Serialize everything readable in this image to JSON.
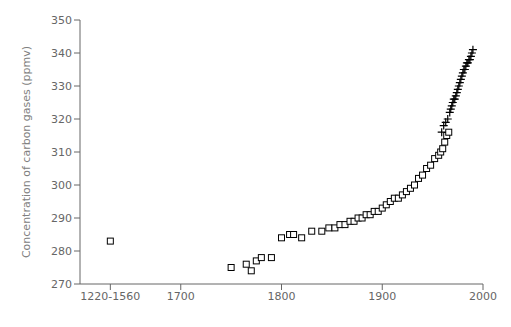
{
  "chart_data": {
    "type": "scatter",
    "ylabel": "Concentration of carbon gases (ppmv)",
    "ylim": [
      270,
      350
    ],
    "yticks": [
      270,
      280,
      290,
      300,
      310,
      320,
      330,
      340,
      350
    ],
    "xlim": [
      1220,
      2000
    ],
    "xticks": [
      {
        "value": 1390,
        "label": "1220-1560"
      },
      1700,
      1800,
      1900,
      2000
    ],
    "grid": false,
    "series": [
      {
        "marker": "square",
        "color": "#000000",
        "x": [
          1390,
          1750,
          1765,
          1770,
          1775,
          1780,
          1790,
          1800,
          1808,
          1812,
          1820,
          1830,
          1840,
          1847,
          1853,
          1858,
          1863,
          1868,
          1872,
          1876,
          1880,
          1884,
          1888,
          1892,
          1896,
          1900,
          1904,
          1908,
          1912,
          1916,
          1920,
          1924,
          1928,
          1932,
          1936,
          1940,
          1944,
          1948,
          1952,
          1956,
          1958,
          1960,
          1962,
          1964,
          1966
        ],
        "values": [
          283,
          275,
          276,
          274,
          277,
          278,
          278,
          284,
          285,
          285,
          284,
          286,
          286,
          287,
          287,
          288,
          288,
          289,
          289,
          290,
          290,
          291,
          291,
          292,
          292,
          293,
          294,
          295,
          296,
          296,
          297,
          298,
          299,
          300,
          302,
          303,
          305,
          306,
          308,
          309,
          310,
          311,
          313,
          315,
          316
        ]
      },
      {
        "marker": "plus",
        "color": "#000000",
        "x": [
          1959,
          1961,
          1963,
          1965,
          1967,
          1968,
          1969,
          1970,
          1971,
          1972,
          1973,
          1974,
          1975,
          1976,
          1977,
          1978,
          1979,
          1980,
          1981,
          1982,
          1983,
          1984,
          1985,
          1986,
          1987,
          1988,
          1989,
          1990
        ],
        "values": [
          316,
          318,
          319,
          320,
          322,
          323,
          324,
          325,
          326,
          326,
          327,
          328,
          329,
          330,
          331,
          332,
          333,
          334,
          335,
          335,
          336,
          337,
          337,
          338,
          338,
          339,
          340,
          341
        ]
      }
    ]
  }
}
